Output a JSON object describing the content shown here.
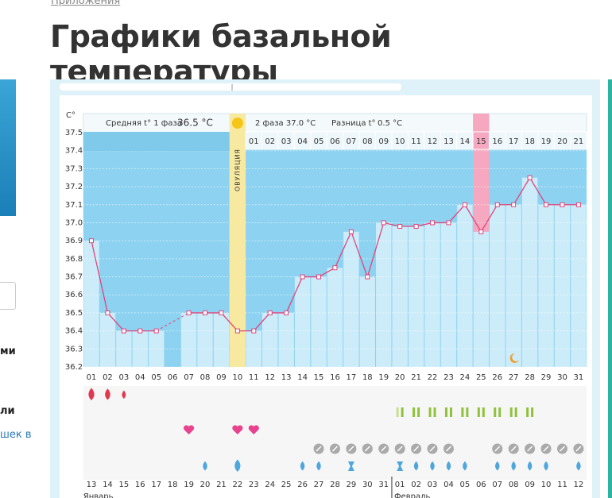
{
  "breadcrumb": "Приложения",
  "title": "Графики базальной температуры",
  "sidebar": {
    "texts": [
      "ми",
      "ли",
      "шек в"
    ]
  },
  "chart_data": {
    "type": "line",
    "unit_label": "C°",
    "phase1_label": "Средняя t° 1 фаза",
    "phase1_value": "36.5 °C",
    "phase2_text": "2 фаза 37.0 °C",
    "diff_label": "Разница t°",
    "diff_value": "0.5 °C",
    "ovulation_label": "ОВУЛЯЦИЯ",
    "categories": [
      "01",
      "02",
      "03",
      "04",
      "05",
      "06",
      "07",
      "08",
      "09",
      "10",
      "11",
      "12",
      "13",
      "14",
      "15",
      "16",
      "17",
      "18",
      "19",
      "20",
      "21",
      "22",
      "23",
      "24",
      "25",
      "26",
      "27",
      "28",
      "29",
      "30",
      "31"
    ],
    "cycle_days": [
      "01",
      "02",
      "03",
      "04",
      "05",
      "06",
      "07",
      "08",
      "09",
      "10",
      "11",
      "12",
      "13",
      "14",
      "15",
      "16",
      "17",
      "18",
      "19",
      "20",
      "21"
    ],
    "dates": [
      "13",
      "14",
      "15",
      "16",
      "17",
      "18",
      "19",
      "20",
      "21",
      "22",
      "23",
      "24",
      "25",
      "26",
      "27",
      "28",
      "29",
      "30",
      "31",
      "01",
      "02",
      "03",
      "04",
      "05",
      "06",
      "07",
      "08",
      "09",
      "10",
      "11",
      "12"
    ],
    "months": [
      "Январь",
      "Февраль"
    ],
    "series": [
      {
        "color": "#e0457b",
        "values": [
          36.9,
          36.5,
          36.4,
          36.4,
          36.4,
          null,
          36.5,
          36.5,
          36.5,
          36.4,
          36.4,
          36.5,
          36.5,
          36.7,
          36.7,
          36.75,
          36.95,
          36.7,
          37.0,
          36.98,
          36.98,
          37.0,
          37.0,
          37.1,
          36.95,
          37.1,
          37.1,
          37.25,
          37.1,
          37.1,
          37.1
        ]
      }
    ],
    "ylim": [
      36.2,
      37.5
    ],
    "yticks": [
      36.2,
      36.3,
      36.4,
      36.5,
      36.6,
      36.7,
      36.8,
      36.9,
      {
        "value": 37,
        "label": "37.0"
      },
      37.1,
      37.2,
      37.3,
      37.4,
      37.5
    ],
    "grid": true
  }
}
